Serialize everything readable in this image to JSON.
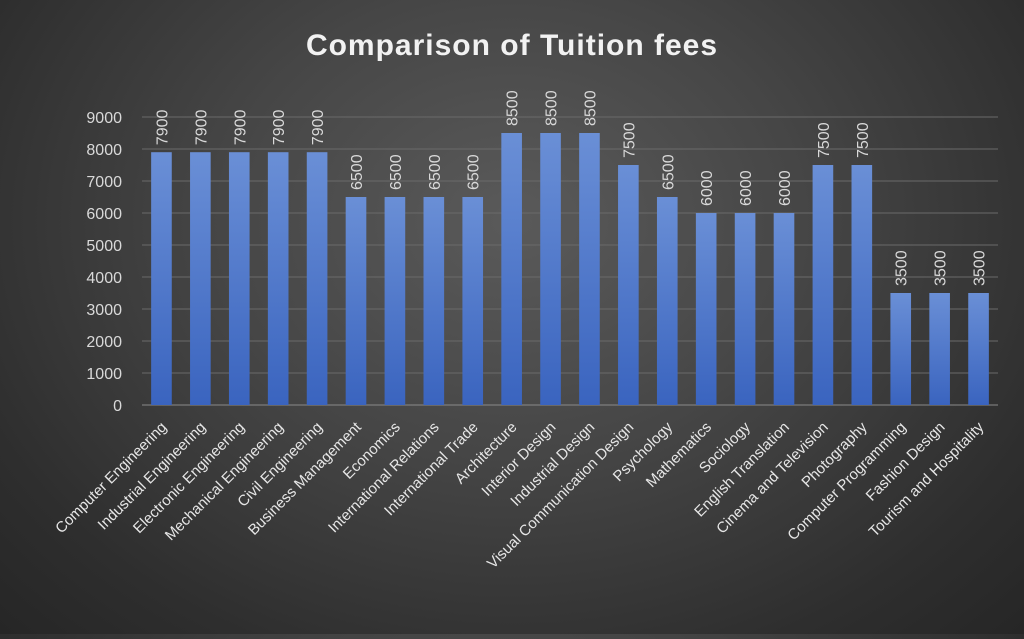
{
  "chart_data": {
    "type": "bar",
    "title": "Comparison of Tuition fees",
    "xlabel": "",
    "ylabel": "",
    "ylim": [
      0,
      9000
    ],
    "yticks": [
      0,
      1000,
      2000,
      3000,
      4000,
      5000,
      6000,
      7000,
      8000,
      9000
    ],
    "grid": true,
    "legend": "none",
    "bar_color": "#4472c4",
    "categories": [
      "Computer Engineering",
      "Industrial Engineering",
      "Electronic Engineering",
      "Mechanical Engineering",
      "Civil Engineering",
      "Business Management",
      "Economics",
      "International Relations",
      "International Trade",
      "Architecture",
      "Interior Design",
      "Industrial Design",
      "Visual Communication Design",
      "Psychology",
      "Mathematics",
      "Sociology",
      "English Translation",
      "Cinema and Television",
      "Photography",
      "Computer Programming",
      "Fashion Design",
      "Tourism and Hospitality"
    ],
    "values": [
      7900,
      7900,
      7900,
      7900,
      7900,
      6500,
      6500,
      6500,
      6500,
      8500,
      8500,
      8500,
      7500,
      6500,
      6000,
      6000,
      6000,
      7500,
      7500,
      3500,
      3500,
      3500
    ]
  }
}
